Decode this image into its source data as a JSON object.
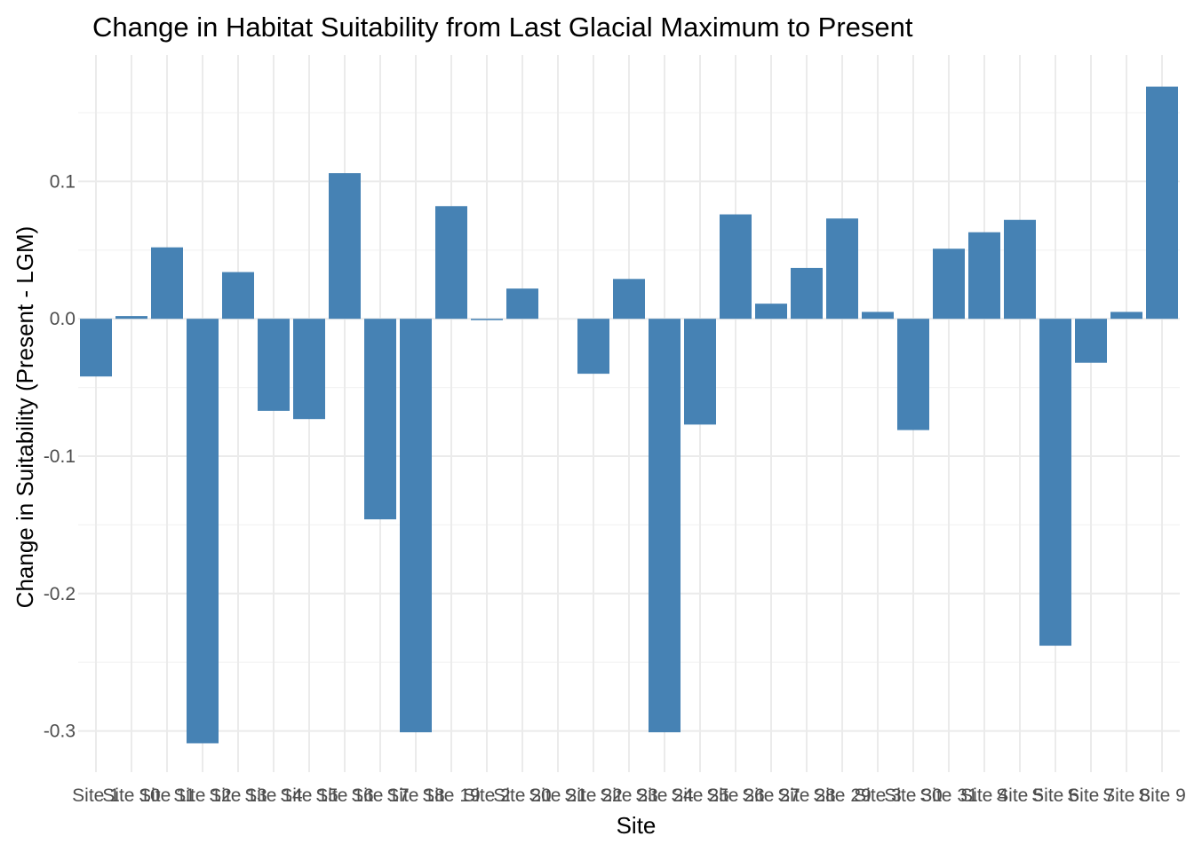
{
  "chart_data": {
    "type": "bar",
    "title": "Change in Habitat Suitability from Last Glacial Maximum to Present",
    "xlabel": "Site",
    "ylabel": "Change in Suitability (Present - LGM)",
    "categories": [
      "Site 1",
      "Site 10",
      "Site 11",
      "Site 12",
      "Site 13",
      "Site 14",
      "Site 15",
      "Site 16",
      "Site 17",
      "Site 18",
      "Site 19",
      "Site 2",
      "Site 20",
      "Site 21",
      "Site 22",
      "Site 23",
      "Site 24",
      "Site 25",
      "Site 26",
      "Site 27",
      "Site 28",
      "Site 29",
      "Site 3",
      "Site 30",
      "Site 31",
      "Site 4",
      "Site 5",
      "Site 6",
      "Site 7",
      "Site 8",
      "Site 9"
    ],
    "values": [
      -0.042,
      0.002,
      0.052,
      -0.309,
      0.034,
      -0.067,
      -0.073,
      0.106,
      -0.146,
      -0.301,
      0.082,
      -0.001,
      0.022,
      0.0,
      -0.04,
      0.029,
      -0.301,
      -0.077,
      0.076,
      0.011,
      0.037,
      0.073,
      0.005,
      -0.081,
      0.051,
      0.063,
      0.072,
      -0.238,
      -0.032,
      0.005,
      0.169
    ],
    "ylim": [
      -0.33,
      0.192
    ],
    "yticks": [
      -0.3,
      -0.2,
      -0.1,
      0.0,
      0.1
    ],
    "ytick_labels": [
      "-0.3",
      "-0.2",
      "-0.1",
      "0.0",
      "0.1"
    ],
    "grid": true,
    "bar_color": "#4682B4",
    "grid_color": "#EBEBEB"
  }
}
